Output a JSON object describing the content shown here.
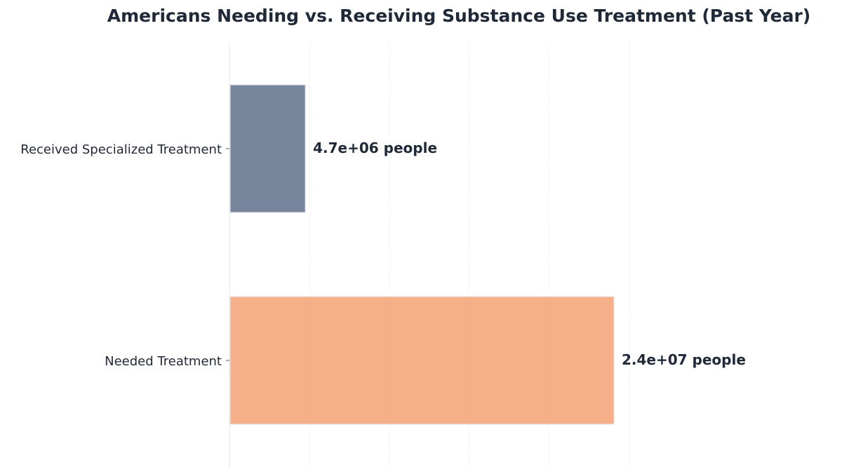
{
  "chart_data": {
    "type": "bar",
    "orientation": "horizontal",
    "title": "Americans Needing vs. Receiving Substance Use Treatment (Past Year)",
    "xlabel": "",
    "ylabel": "",
    "categories": [
      "Received Specialized Treatment",
      "Needed Treatment"
    ],
    "values": [
      4700000,
      24000000
    ],
    "data_labels": [
      "4.7e+06 people",
      "2.4e+07 people"
    ],
    "colors": [
      "#77869c",
      "#f5af89"
    ],
    "xlim": [
      0,
      30000000
    ],
    "grid": true,
    "legend": "none"
  }
}
